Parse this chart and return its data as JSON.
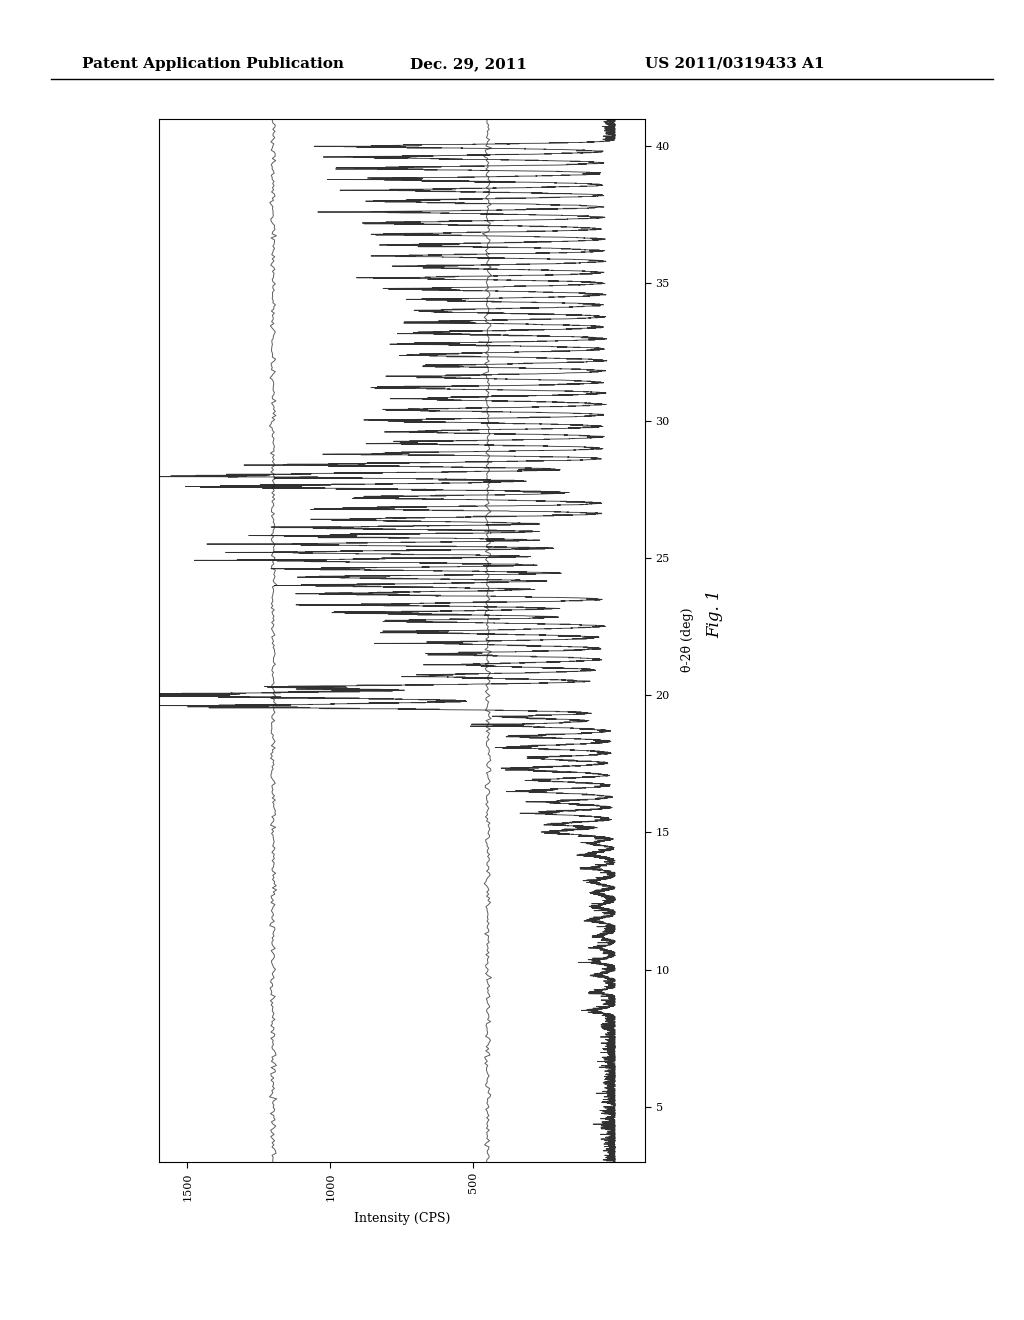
{
  "header_left": "Patent Application Publication",
  "header_center": "Dec. 29, 2011",
  "header_right": "US 2011/0319433 A1",
  "fig_label": "Fig. 1",
  "xlabel": "Intensity (CPS)",
  "ylabel": "θ-2θ (deg)",
  "xlim": [
    1600,
    -100
  ],
  "ylim": [
    3,
    41
  ],
  "xticks": [
    1500,
    1000,
    500
  ],
  "yticks": [
    5,
    10,
    15,
    20,
    25,
    30,
    35,
    40
  ],
  "background_color": "#ffffff",
  "line_color": "#1a1a1a",
  "font_size_header": 11,
  "font_size_axis": 9,
  "font_size_fig": 11
}
